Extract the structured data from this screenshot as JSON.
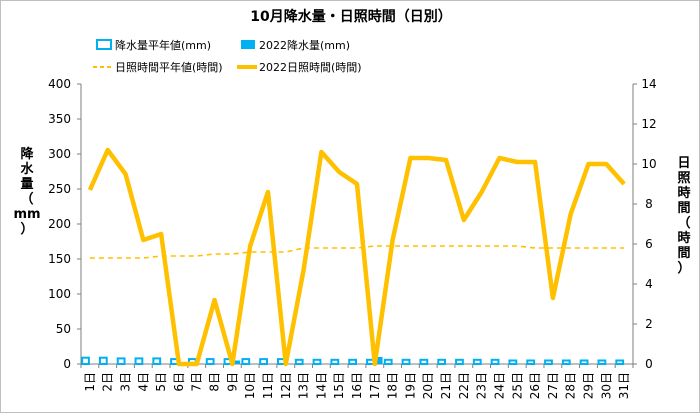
{
  "chart_data": {
    "type": "bar+line",
    "title": "10月降水量・日照時間（日別）",
    "legend": {
      "items": [
        {
          "label": "降水量平年値(mm)",
          "style": "bar-outline",
          "color": "#00B0F0"
        },
        {
          "label": "2022降水量(mm)",
          "style": "bar-filled",
          "color": "#00B0F0"
        },
        {
          "label": "日照時間平年値(時間)",
          "style": "dashed-line",
          "color": "#FFC000"
        },
        {
          "label": "2022日照時間(時間)",
          "style": "thick-line",
          "color": "#FFC000"
        }
      ],
      "placement": "top"
    },
    "categories": [
      "1日",
      "2日",
      "3日",
      "4日",
      "5日",
      "6日",
      "7日",
      "8日",
      "9日",
      "10日",
      "11日",
      "12日",
      "13日",
      "14日",
      "15日",
      "16日",
      "17日",
      "18日",
      "19日",
      "20日",
      "21日",
      "22日",
      "23日",
      "24日",
      "25日",
      "26日",
      "27日",
      "28日",
      "29日",
      "30日",
      "31日"
    ],
    "y_left": {
      "label": [
        "降",
        "水",
        "量",
        "（",
        "mm",
        "）"
      ],
      "ylim": [
        0,
        400
      ],
      "ticks": [
        "0",
        "50",
        "100",
        "150",
        "200",
        "250",
        "300",
        "350",
        "400"
      ]
    },
    "y_right": {
      "label": [
        "日",
        "照",
        "時",
        "間",
        "（",
        "時",
        "間",
        "）"
      ],
      "ylim": [
        0,
        14
      ],
      "ticks": [
        "0",
        "2",
        "4",
        "6",
        "8",
        "10",
        "12",
        "14"
      ]
    },
    "series": [
      {
        "name": "降水量平年値(mm)",
        "axis": "left",
        "type": "bar-outline",
        "values": [
          9,
          9,
          8,
          8,
          8,
          7,
          7,
          7,
          7,
          7,
          7,
          7,
          6,
          6,
          6,
          6,
          6,
          6,
          6,
          6,
          6,
          6,
          6,
          6,
          5,
          5,
          5,
          5,
          5,
          5,
          5
        ]
      },
      {
        "name": "2022降水量(mm)",
        "axis": "left",
        "type": "bar-filled",
        "values": [
          0,
          0,
          0,
          0,
          0,
          0,
          0,
          0,
          5,
          0,
          0,
          0,
          0,
          0,
          0,
          0,
          10,
          0,
          0,
          0,
          0,
          0,
          0,
          0,
          0,
          0,
          0,
          0,
          0,
          0,
          0
        ]
      },
      {
        "name": "日照時間平年値(時間)",
        "axis": "right",
        "type": "dashed-line",
        "values": [
          5.3,
          5.3,
          5.3,
          5.3,
          5.4,
          5.4,
          5.4,
          5.5,
          5.5,
          5.6,
          5.6,
          5.6,
          5.8,
          5.8,
          5.8,
          5.8,
          5.9,
          5.9,
          5.9,
          5.9,
          5.9,
          5.9,
          5.9,
          5.9,
          5.9,
          5.8,
          5.8,
          5.8,
          5.8,
          5.8,
          5.8
        ]
      },
      {
        "name": "2022日照時間(時間)",
        "axis": "right",
        "type": "thick-line",
        "values": [
          8.7,
          10.7,
          9.5,
          6.2,
          6.5,
          0,
          0,
          3.2,
          0,
          5.9,
          8.6,
          0,
          4.7,
          10.6,
          9.6,
          9.0,
          0,
          6.2,
          10.3,
          10.3,
          10.2,
          7.2,
          8.6,
          10.3,
          10.1,
          10.1,
          3.3,
          7.5,
          10.0,
          10.0,
          9.0
        ]
      }
    ],
    "grid": false
  }
}
